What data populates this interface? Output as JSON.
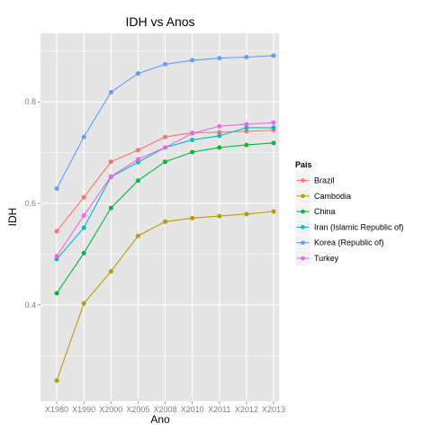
{
  "chart_data": {
    "type": "line",
    "title": "IDH vs Anos",
    "xlabel": "Ano",
    "ylabel": "IDH",
    "categories": [
      "X1980",
      "X1990",
      "X2000",
      "X2005",
      "X2008",
      "X2010",
      "X2011",
      "X2012",
      "X2013"
    ],
    "ylim": [
      0.21,
      0.935
    ],
    "yticks": [
      0.4,
      0.6,
      0.8
    ],
    "grid": true,
    "legend": {
      "title": "Pais",
      "position": "right"
    },
    "series": [
      {
        "name": "Brazil",
        "color": "#F8766D",
        "values": [
          0.545,
          0.612,
          0.682,
          0.705,
          0.731,
          0.739,
          0.74,
          0.742,
          0.744
        ]
      },
      {
        "name": "Cambodia",
        "color": "#B79F00",
        "values": [
          0.251,
          0.403,
          0.466,
          0.536,
          0.564,
          0.571,
          0.575,
          0.579,
          0.584
        ]
      },
      {
        "name": "China",
        "color": "#00BA38",
        "values": [
          0.423,
          0.502,
          0.591,
          0.645,
          0.682,
          0.701,
          0.71,
          0.715,
          0.719
        ]
      },
      {
        "name": "Iran (Islamic Republic of)",
        "color": "#00BFC4",
        "values": [
          0.49,
          0.552,
          0.652,
          0.681,
          0.71,
          0.725,
          0.733,
          0.749,
          0.749
        ]
      },
      {
        "name": "Korea (Republic of)",
        "color": "#619CFF",
        "values": [
          0.629,
          0.731,
          0.819,
          0.856,
          0.874,
          0.882,
          0.886,
          0.888,
          0.891
        ]
      },
      {
        "name": "Turkey",
        "color": "#F564E3",
        "values": [
          0.496,
          0.576,
          0.653,
          0.687,
          0.71,
          0.738,
          0.752,
          0.756,
          0.759
        ]
      }
    ]
  }
}
